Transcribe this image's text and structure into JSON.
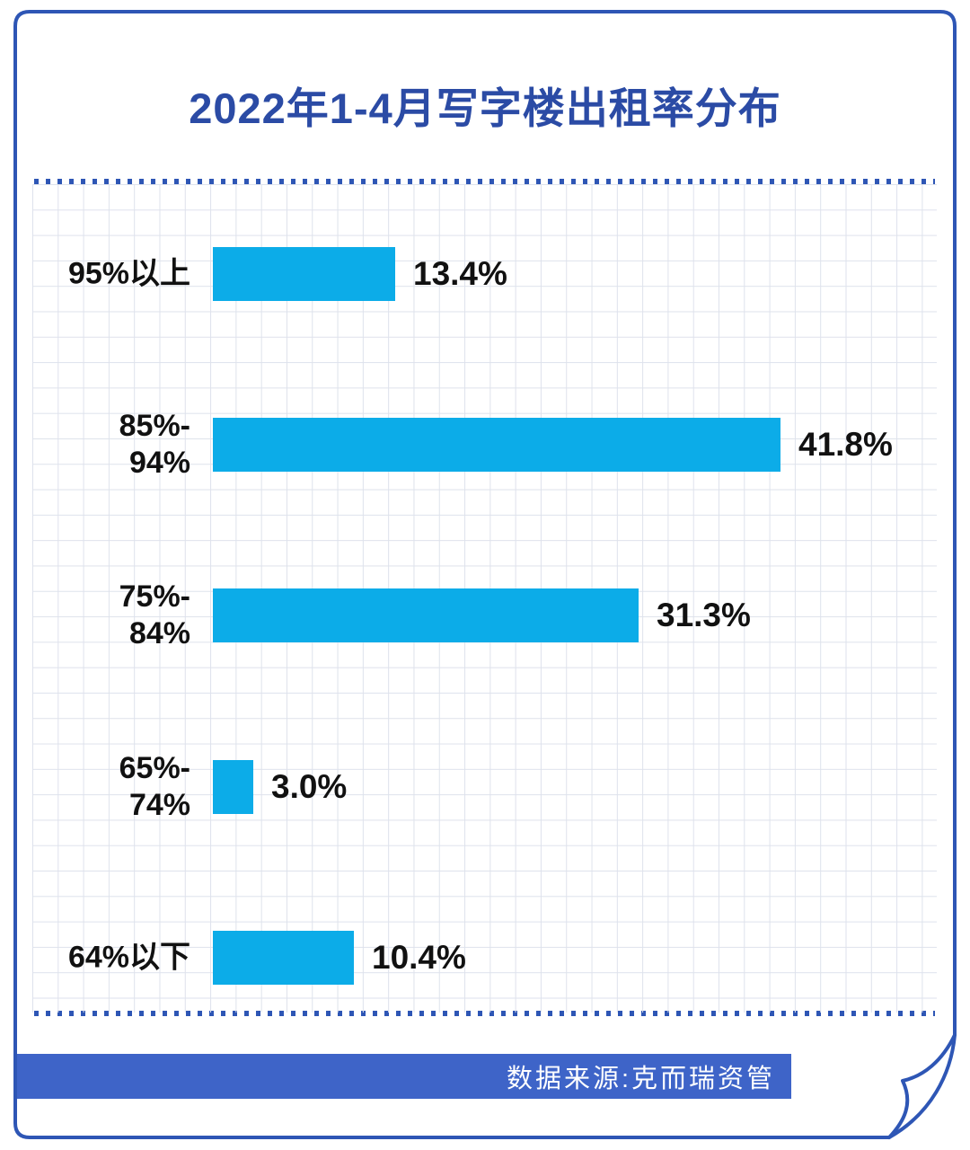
{
  "page": {
    "title": "2022年1-4月写字楼出租率分布",
    "source_label": "数据来源:克而瑞资管"
  },
  "colors": {
    "title_blue": "#2B4BA5",
    "border_blue": "#2E56B5",
    "bar_cyan": "#0CACE8",
    "footer_blue": "#3E64C8",
    "grid_line": "#DEE2EC",
    "label_black": "#111111"
  },
  "chart_data": {
    "type": "bar",
    "orientation": "horizontal",
    "title": "2022年1-4月写字楼出租率分布",
    "categories": [
      "95%以上",
      "85%-94%",
      "75%-84%",
      "65%-74%",
      "64%以下"
    ],
    "category_lines": [
      [
        "95%以上"
      ],
      [
        "85%-",
        "94%"
      ],
      [
        "75%-",
        "84%"
      ],
      [
        "65%-",
        "74%"
      ],
      [
        "64%以下"
      ]
    ],
    "values": [
      13.4,
      41.8,
      31.3,
      3.0,
      10.4
    ],
    "value_labels": [
      "13.4%",
      "41.8%",
      "31.3%",
      "3.0%",
      "10.4%"
    ],
    "unit": "%",
    "xlim": [
      0,
      45
    ],
    "grid": true,
    "legend": "none",
    "bar_color": "#0CACE8",
    "source": "数据来源:克而瑞资管"
  }
}
